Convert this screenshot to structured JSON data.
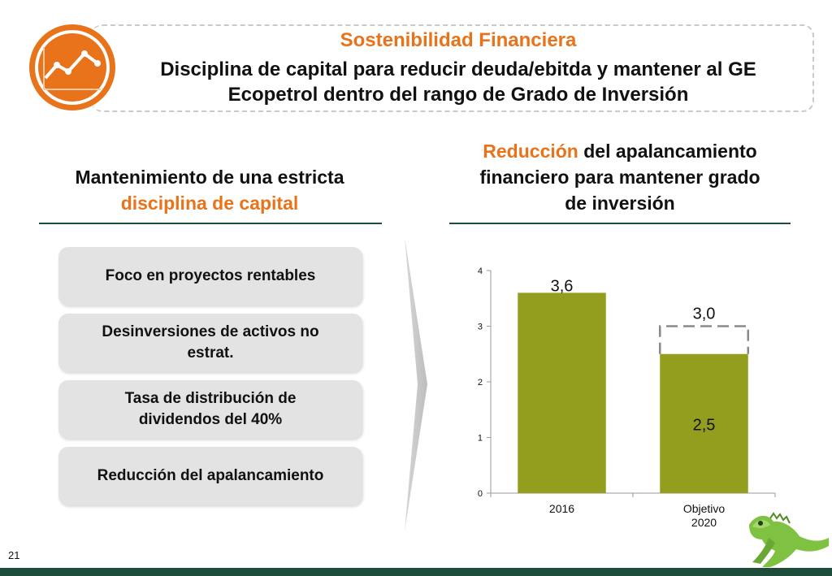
{
  "header": {
    "title": "Sostenibilidad Financiera",
    "subtitle_line1": "Disciplina de capital para reducir deuda/ebitda y mantener al GE",
    "subtitle_line2": "Ecopetrol dentro del rango de Grado de Inversión"
  },
  "left": {
    "title_line1": "Mantenimiento de una estricta",
    "title_line2": "disciplina de capital",
    "items": [
      "Foco en proyectos rentables",
      "Desinversiones de activos no estrat.",
      "Tasa de distribución de dividendos del 40%",
      "Reducción del apalancamiento"
    ]
  },
  "right": {
    "title_highlight": "Reducción",
    "title_rest": "del apalancamiento",
    "title_line2": "financiero para mantener grado",
    "title_line3": "de inversión"
  },
  "page_number": "21",
  "colors": {
    "accent": "#e8731b",
    "bar": "#939e1f",
    "rule": "#1e4d3b",
    "footer": "#1d4d3a"
  },
  "chart_data": {
    "type": "bar",
    "categories": [
      "2016",
      "Objetivo 2020"
    ],
    "category_lines": [
      [
        "2016"
      ],
      [
        "Objetivo",
        "2020"
      ]
    ],
    "values": [
      3.6,
      2.5
    ],
    "value_labels": [
      "3,6",
      "2,5"
    ],
    "target": {
      "category": "Objetivo 2020",
      "value": 3.0,
      "label": "3,0",
      "style": "dashed-outline"
    },
    "ylim": [
      0,
      4
    ],
    "yticks": [
      0,
      1,
      2,
      3,
      4
    ],
    "grid": false,
    "title": "",
    "xlabel": "",
    "ylabel": ""
  }
}
